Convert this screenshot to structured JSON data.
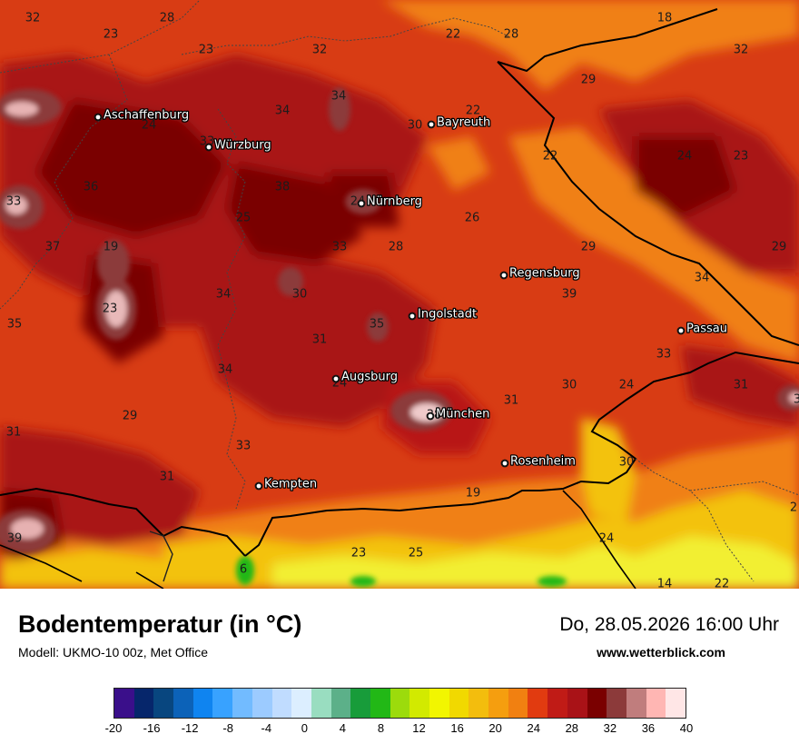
{
  "header": {
    "title": "Bodentemperatur (in °C)",
    "model": "Modell: UKMO-10 00z, Met Office",
    "datetime": "Do, 28.05.2026 16:00 Uhr",
    "website": "www.wetterblick.com"
  },
  "cities": [
    {
      "name": "Aschaffenburg"
    },
    {
      "name": "Würzburg"
    },
    {
      "name": "Bayreuth"
    },
    {
      "name": "Nürnberg"
    },
    {
      "name": "Regensburg"
    },
    {
      "name": "Ingolstadt"
    },
    {
      "name": "Passau"
    },
    {
      "name": "Augsburg"
    },
    {
      "name": "München"
    },
    {
      "name": "Rosenheim"
    },
    {
      "name": "Kempten"
    }
  ],
  "value_labels": [
    "32",
    "28",
    "23",
    "23",
    "32",
    "22",
    "28",
    "18",
    "32",
    "29",
    "34",
    "34",
    "24",
    "22",
    "30",
    "33",
    "22",
    "24",
    "23",
    "36",
    "33",
    "38",
    "24",
    "26",
    "25",
    "33",
    "28",
    "29",
    "37",
    "29",
    "19",
    "34",
    "34",
    "30",
    "39",
    "23",
    "35",
    "35",
    "31",
    "33",
    "34",
    "24",
    "29",
    "30",
    "31",
    "31",
    "38",
    "24",
    "31",
    "30",
    "33",
    "31",
    "19",
    "39",
    "24",
    "23",
    "25",
    "6",
    "14",
    "22",
    "2",
    "3"
  ],
  "legend": {
    "colors": [
      "#3a0f8a",
      "#06266b",
      "#08467f",
      "#0c62b8",
      "#0f84f0",
      "#38a2ff",
      "#72bbff",
      "#9ccbff",
      "#c0dcff",
      "#dceeff",
      "#99ddc0",
      "#5cb089",
      "#189c3a",
      "#22b816",
      "#9cdb0c",
      "#d2ea00",
      "#f2f600",
      "#f1d900",
      "#f3bd0d",
      "#f59e0f",
      "#f18011",
      "#e13b10",
      "#c01b16",
      "#a91217",
      "#7a0000",
      "#8c3a3a",
      "#c07d7d",
      "#ffb6b3",
      "#ffe6e6"
    ],
    "ticks": [
      "-20",
      "-16",
      "-12",
      "-8",
      "-4",
      "0",
      "4",
      "8",
      "12",
      "16",
      "20",
      "24",
      "28",
      "32",
      "36",
      "40"
    ]
  }
}
